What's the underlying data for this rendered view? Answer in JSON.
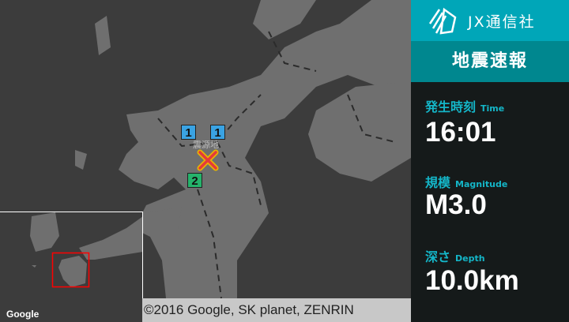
{
  "map": {
    "epicenter_label": "震源地",
    "stations": [
      {
        "intensity": "1",
        "color": "#3aa3e3"
      },
      {
        "intensity": "1",
        "color": "#3aa3e3"
      },
      {
        "intensity": "2",
        "color": "#25b36b"
      }
    ],
    "epicenter_icon": "x-mark-icon",
    "copyright": "©2016 Google, SK planet, ZENRIN",
    "inset_logo": "Google"
  },
  "panel": {
    "brand": "JX通信社",
    "title": "地震速報",
    "time_label": "発生時刻",
    "time_label_en": "Time",
    "time": "16:01",
    "magnitude_label": "規模",
    "magnitude_label_en": "Magnitude",
    "magnitude": "M3.0",
    "depth_label": "深さ",
    "depth_label_en": "Depth",
    "depth": "10.0km"
  },
  "colors": {
    "brand": "#00a6b8",
    "title_bg": "#00878f",
    "accent": "#14b6c8",
    "land": "#6f6f6f",
    "sea": "#3c3c3c"
  }
}
